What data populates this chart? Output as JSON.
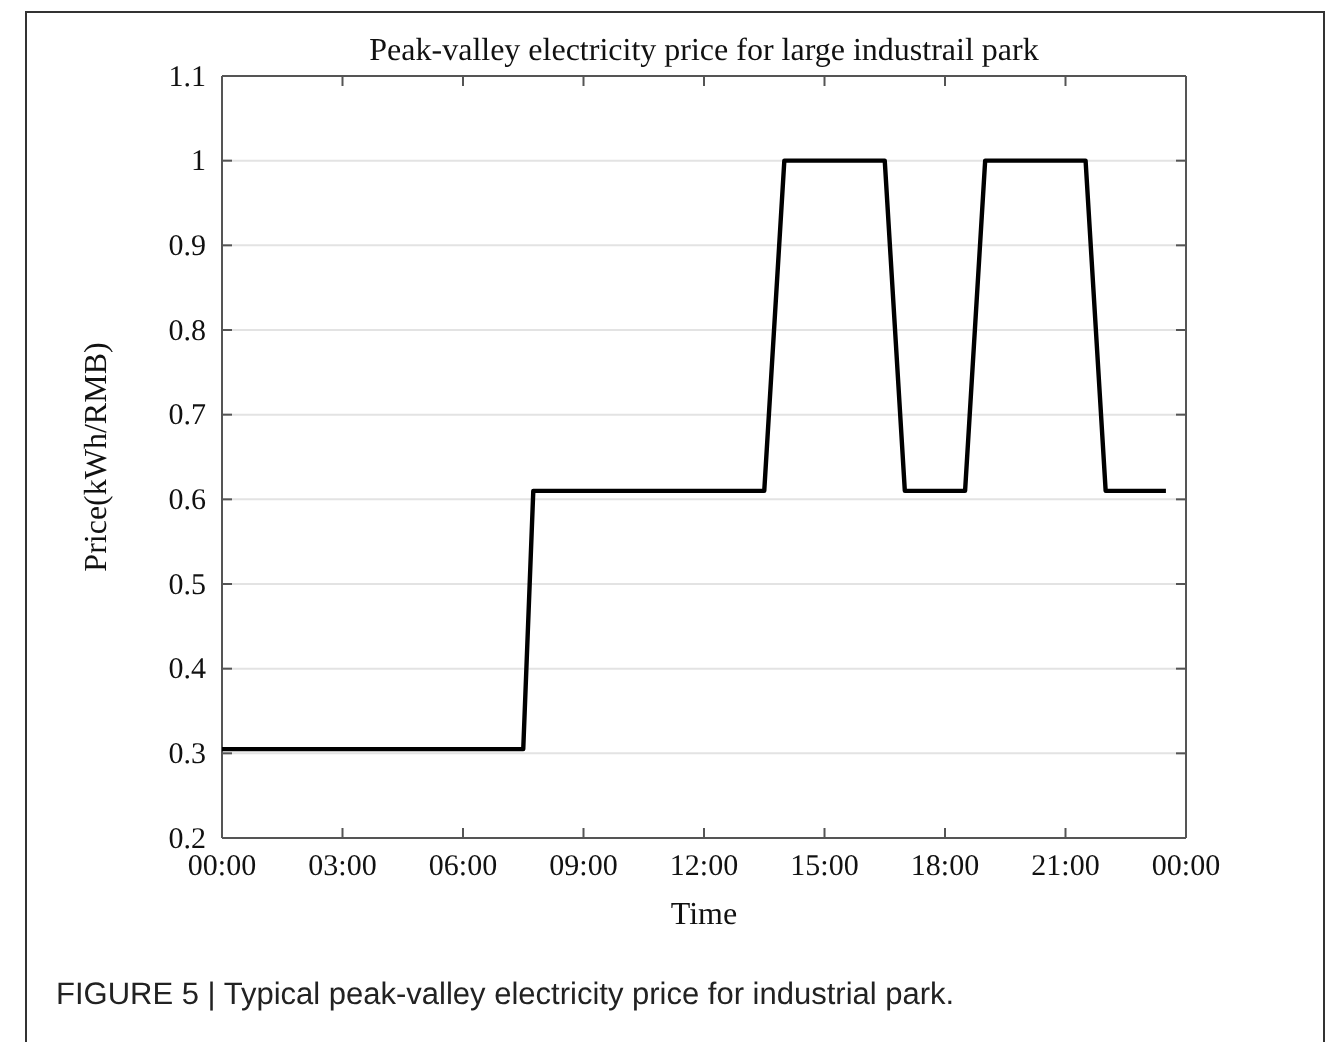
{
  "chart_data": {
    "type": "line",
    "title": "Peak-valley electricity price for large industrail park",
    "xlabel": "Time",
    "ylabel": "Price(kWh/RMB)",
    "series": [
      {
        "color": "#000000",
        "x": [
          0,
          7.5,
          7.75,
          13.5,
          14,
          16.5,
          17,
          18.5,
          19,
          21.5,
          22,
          23.5
        ],
        "values": [
          0.305,
          0.305,
          0.61,
          0.61,
          1,
          1,
          0.61,
          0.61,
          1,
          1,
          0.61,
          0.61
        ]
      }
    ],
    "xlim": [
      0,
      24
    ],
    "xticks": [
      {
        "value": 0,
        "label": "00:00"
      },
      {
        "value": 3,
        "label": "03:00"
      },
      {
        "value": 6,
        "label": "06:00"
      },
      {
        "value": 9,
        "label": "09:00"
      },
      {
        "value": 12,
        "label": "12:00"
      },
      {
        "value": 15,
        "label": "15:00"
      },
      {
        "value": 18,
        "label": "18:00"
      },
      {
        "value": 21,
        "label": "21:00"
      },
      {
        "value": 24,
        "label": "00:00"
      }
    ],
    "ylim": [
      0.2,
      1.1
    ],
    "yticks": [
      0.2,
      0.3,
      0.4,
      0.5,
      0.6,
      0.7,
      0.8,
      0.9,
      1,
      1.1
    ],
    "grid": "y",
    "marker": "none",
    "line_style": "solid",
    "annotations": [
      "FIGURE 5 | Typical peak-valley electricity price for industrial park."
    ]
  }
}
